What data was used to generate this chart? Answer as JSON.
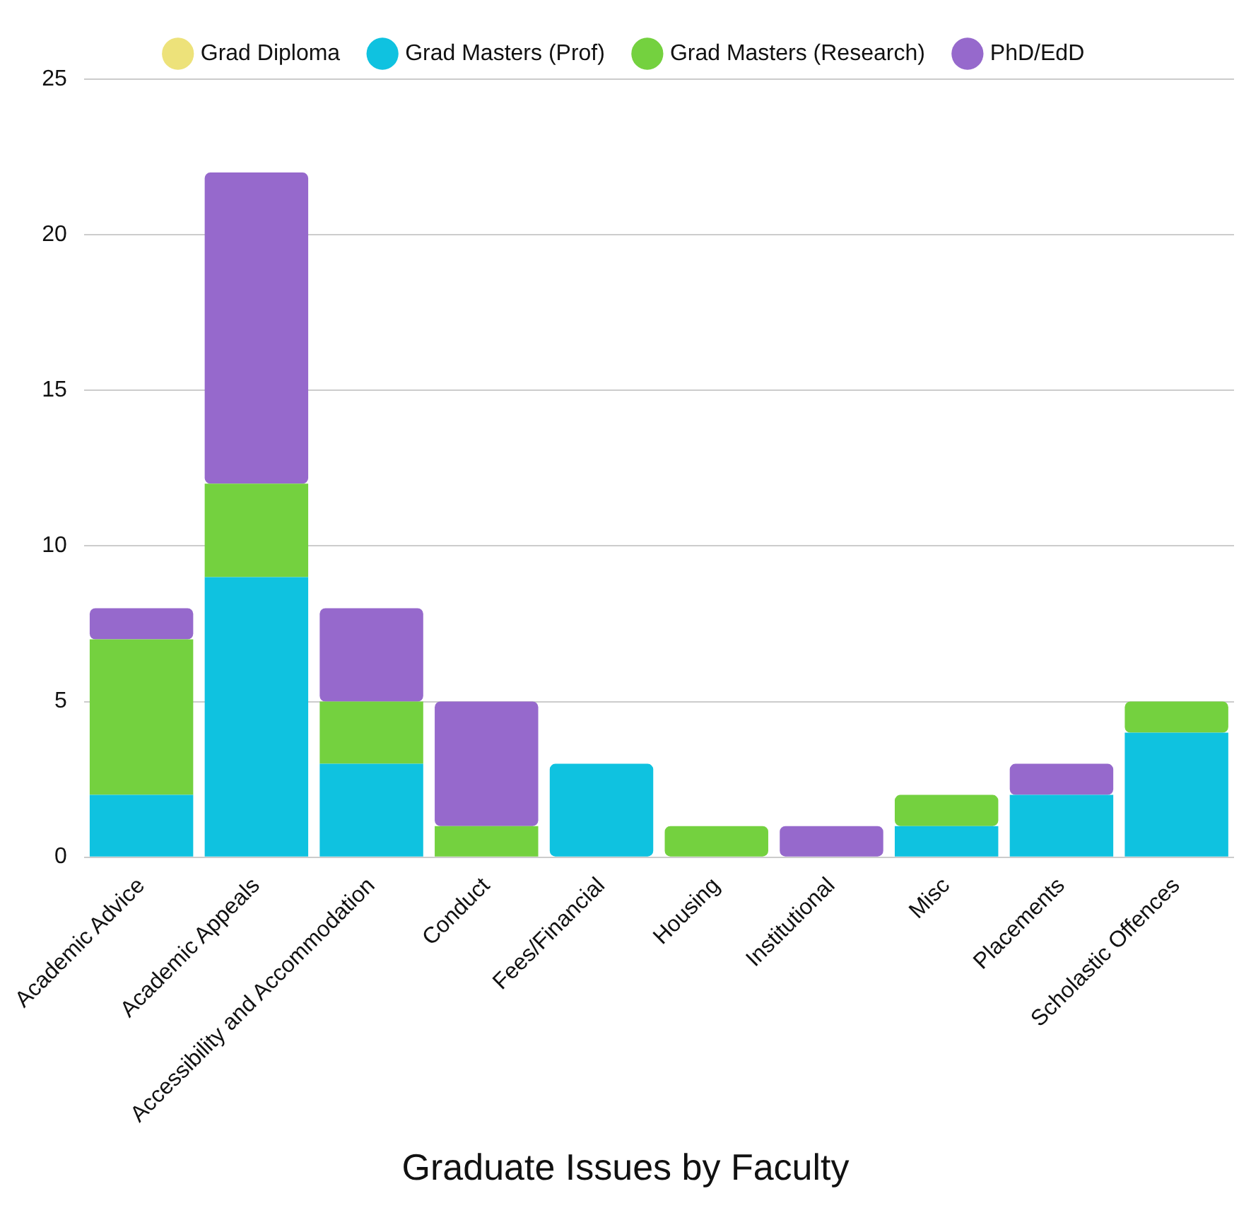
{
  "chart_data": {
    "type": "bar",
    "title": "Graduate Issues by Faculty",
    "stacked": true,
    "legend": "top",
    "grid": "y",
    "categories": [
      "Academic Advice",
      "Academic Appeals",
      "Accessibility and Accommodation",
      "Conduct",
      "Fees/Financial",
      "Housing",
      "Institutional",
      "Misc",
      "Placements",
      "Scholastic Offences"
    ],
    "ylim": [
      0,
      25
    ],
    "yticks": [
      0,
      5,
      10,
      15,
      20,
      25
    ],
    "series": [
      {
        "name": "Grad Diploma",
        "color": "#ede27a",
        "values": [
          0,
          0,
          0,
          0,
          0,
          0,
          0,
          0,
          0,
          0
        ]
      },
      {
        "name": "Grad Masters (Prof)",
        "color": "#0fc2e0",
        "values": [
          2,
          9,
          3,
          0,
          3,
          0,
          0,
          1,
          2,
          4
        ]
      },
      {
        "name": "Grad Masters (Research)",
        "color": "#74d13f",
        "values": [
          5,
          3,
          2,
          1,
          0,
          1,
          0,
          1,
          0,
          1
        ]
      },
      {
        "name": "PhD/EdD",
        "color": "#9669cc",
        "values": [
          1,
          10,
          3,
          4,
          0,
          0,
          1,
          0,
          1,
          0
        ]
      }
    ]
  }
}
